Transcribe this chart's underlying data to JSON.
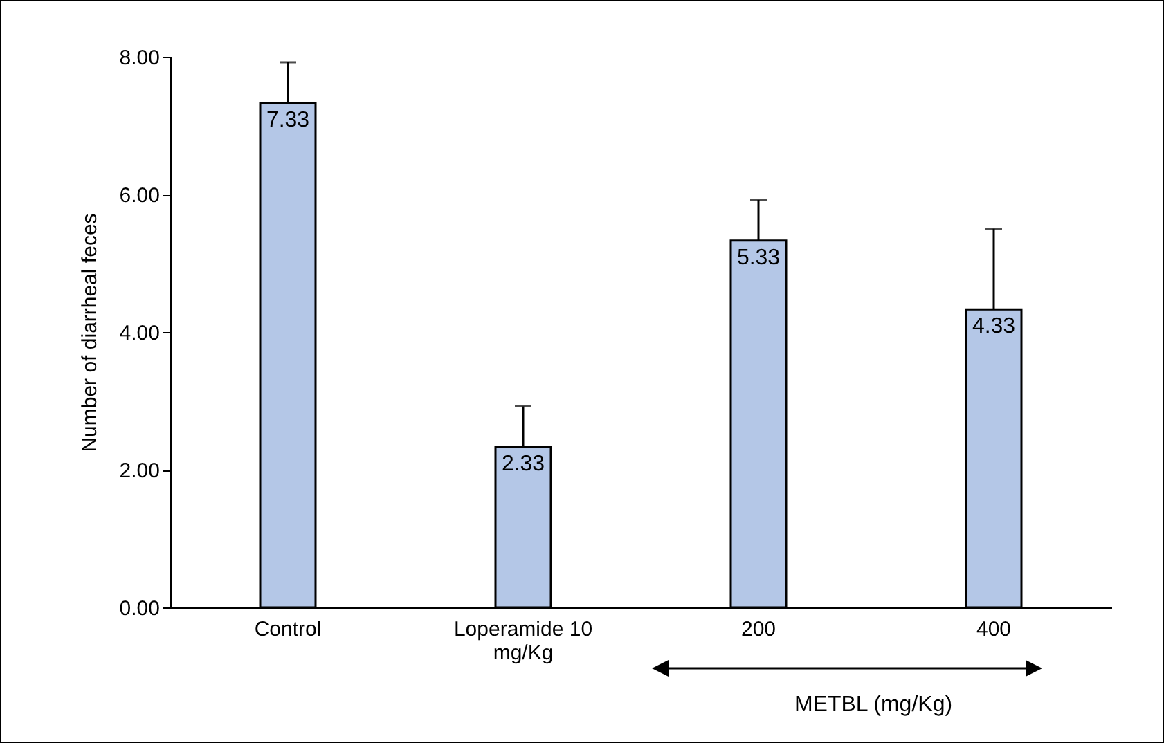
{
  "chart_data": {
    "type": "bar",
    "ylabel": "Number of diarrheal feces",
    "categories": [
      "Control",
      "Loperamide 10 mg/Kg",
      "200",
      "400"
    ],
    "values": [
      7.33,
      2.33,
      5.33,
      4.33
    ],
    "color": "#b4c7e7",
    "errors": [
      [
        7.33,
        7.92
      ],
      [
        2.33,
        2.92
      ],
      [
        5.33,
        5.92
      ],
      [
        4.33,
        5.5
      ]
    ],
    "data_labels": true,
    "ylim": [
      0,
      8
    ],
    "yticks": [
      {
        "value": 0,
        "label": "0.00"
      },
      {
        "value": 2,
        "label": "2.00"
      },
      {
        "value": 4,
        "label": "4.00"
      },
      {
        "value": 6,
        "label": "6.00"
      },
      {
        "value": 8,
        "label": "8.00"
      }
    ],
    "grid": false,
    "annotations": [
      "METBL (mg/Kg)"
    ]
  }
}
